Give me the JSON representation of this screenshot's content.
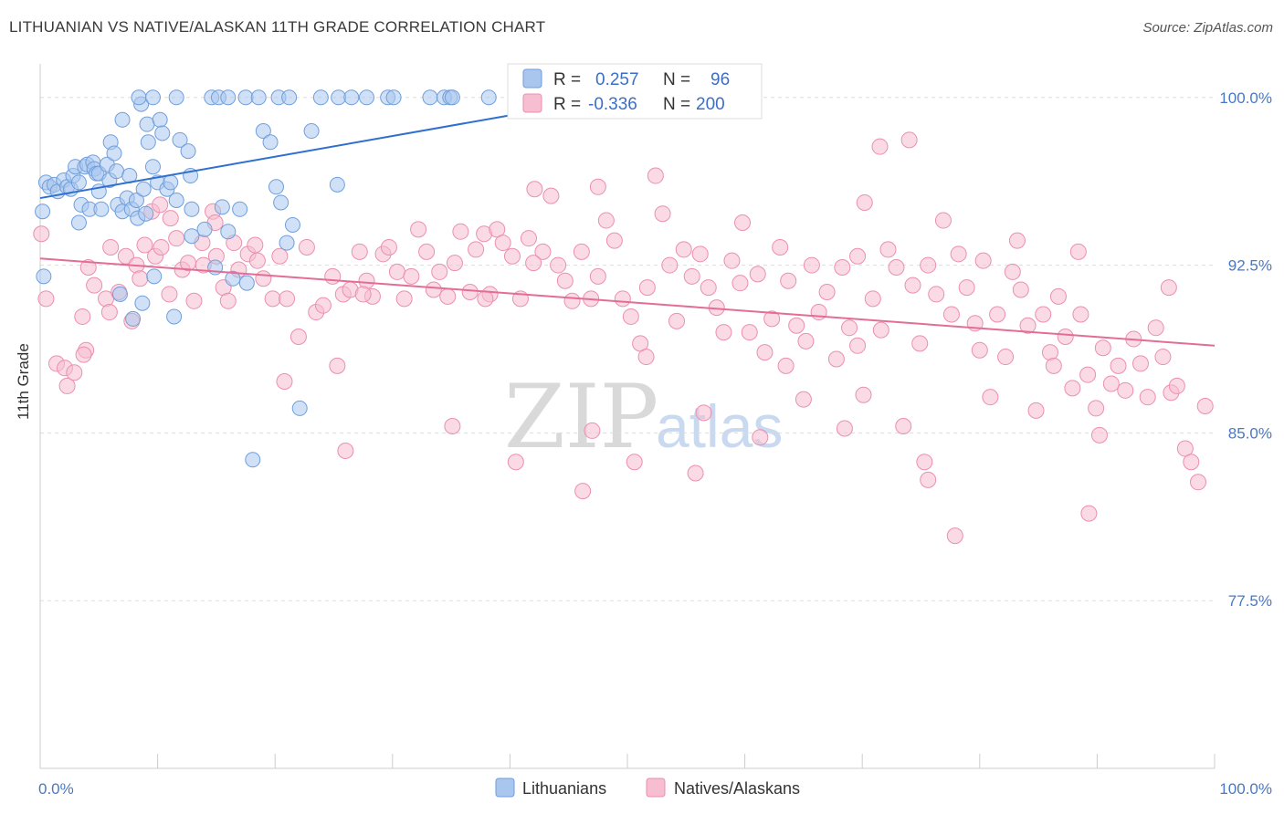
{
  "header": {
    "title": "LITHUANIAN VS NATIVE/ALASKAN 11TH GRADE CORRELATION CHART",
    "source": "Source: ZipAtlas.com"
  },
  "watermark": {
    "zip": "ZIP",
    "atlas": "atlas"
  },
  "colors": {
    "blue": "#6f9fdc",
    "blue_fill": "#a9c6ee",
    "blue_line": "#2f6fce",
    "pink": "#ec8fae",
    "pink_fill": "#f6bed0",
    "pink_line": "#e36d96",
    "tick_text": "#4a78c4",
    "grid": "#dddddd"
  },
  "stats": [
    {
      "r_label": "R =",
      "r_value": "0.257",
      "n_label": "N =",
      "n_value": "96"
    },
    {
      "r_label": "R =",
      "r_value": "-0.336",
      "n_label": "N =",
      "n_value": "200"
    }
  ],
  "chart_data": {
    "type": "scatter",
    "title": "LITHUANIAN VS NATIVE/ALASKAN 11TH GRADE CORRELATION CHART",
    "xlabel": "",
    "ylabel": "11th Grade",
    "xlim": [
      0,
      100
    ],
    "ylim": [
      70.0,
      101.5
    ],
    "x_tick_labels": [
      "0.0%",
      "100.0%"
    ],
    "y_ticks": [
      77.5,
      85.0,
      92.5,
      100.0
    ],
    "y_tick_labels": [
      "77.5%",
      "85.0%",
      "92.5%",
      "100.0%"
    ],
    "grid": true,
    "legend_position": "bottom-center",
    "series": [
      {
        "name": "Lithuanians",
        "color": "#6f9fdc",
        "r": 0.257,
        "n": 96,
        "trend": {
          "x": [
            0,
            40
          ],
          "y": [
            95.5,
            99.2
          ]
        },
        "points": [
          [
            0.2,
            94.9
          ],
          [
            0.3,
            92.0
          ],
          [
            0.5,
            96.2
          ],
          [
            0.8,
            96.0
          ],
          [
            1.2,
            96.1
          ],
          [
            1.5,
            95.8
          ],
          [
            2.0,
            96.3
          ],
          [
            2.3,
            96.0
          ],
          [
            2.6,
            95.9
          ],
          [
            2.8,
            96.5
          ],
          [
            3.0,
            96.9
          ],
          [
            3.3,
            96.2
          ],
          [
            3.5,
            95.2
          ],
          [
            3.3,
            94.4
          ],
          [
            3.8,
            96.9
          ],
          [
            4.0,
            97.0
          ],
          [
            4.2,
            95.0
          ],
          [
            4.5,
            97.1
          ],
          [
            4.6,
            96.8
          ],
          [
            4.8,
            96.6
          ],
          [
            5.0,
            96.6
          ],
          [
            5.0,
            95.8
          ],
          [
            5.2,
            95.0
          ],
          [
            5.7,
            97.0
          ],
          [
            5.9,
            96.3
          ],
          [
            6.0,
            98.0
          ],
          [
            6.3,
            97.5
          ],
          [
            6.5,
            96.7
          ],
          [
            6.6,
            95.2
          ],
          [
            7.0,
            99.0
          ],
          [
            7.0,
            94.9
          ],
          [
            7.4,
            95.5
          ],
          [
            7.6,
            96.5
          ],
          [
            7.8,
            95.0
          ],
          [
            8.2,
            95.4
          ],
          [
            8.3,
            94.6
          ],
          [
            8.6,
            99.7
          ],
          [
            8.8,
            95.9
          ],
          [
            9.0,
            94.8
          ],
          [
            9.1,
            98.8
          ],
          [
            9.2,
            98.0
          ],
          [
            9.6,
            96.9
          ],
          [
            9.7,
            92.0
          ],
          [
            10.0,
            96.2
          ],
          [
            10.2,
            99.0
          ],
          [
            10.4,
            98.4
          ],
          [
            10.8,
            95.9
          ],
          [
            11.1,
            96.2
          ],
          [
            11.6,
            95.4
          ],
          [
            11.9,
            98.1
          ],
          [
            12.6,
            97.6
          ],
          [
            12.8,
            96.5
          ],
          [
            12.9,
            95.0
          ],
          [
            12.9,
            93.8
          ],
          [
            14.0,
            94.1
          ],
          [
            14.9,
            92.4
          ],
          [
            15.5,
            95.1
          ],
          [
            16.0,
            94.0
          ],
          [
            16.4,
            91.9
          ],
          [
            17.0,
            95.0
          ],
          [
            17.6,
            91.7
          ],
          [
            18.1,
            83.8
          ],
          [
            19.0,
            98.5
          ],
          [
            19.6,
            98.0
          ],
          [
            20.1,
            96.0
          ],
          [
            20.5,
            95.3
          ],
          [
            21.0,
            93.5
          ],
          [
            21.5,
            94.3
          ],
          [
            22.1,
            86.1
          ],
          [
            23.1,
            98.5
          ],
          [
            25.3,
            96.1
          ],
          [
            6.8,
            91.2
          ],
          [
            7.9,
            90.1
          ],
          [
            8.7,
            90.8
          ],
          [
            11.4,
            90.2
          ],
          [
            8.4,
            100.0
          ],
          [
            9.6,
            100.0
          ],
          [
            11.6,
            100.0
          ],
          [
            14.6,
            100.0
          ],
          [
            15.2,
            100.0
          ],
          [
            16.0,
            100.0
          ],
          [
            17.5,
            100.0
          ],
          [
            18.6,
            100.0
          ],
          [
            20.3,
            100.0
          ],
          [
            21.2,
            100.0
          ],
          [
            23.9,
            100.0
          ],
          [
            25.4,
            100.0
          ],
          [
            26.5,
            100.0
          ],
          [
            27.8,
            100.0
          ],
          [
            29.6,
            100.0
          ],
          [
            30.1,
            100.0
          ],
          [
            33.2,
            100.0
          ],
          [
            34.4,
            100.0
          ],
          [
            34.9,
            100.0
          ],
          [
            35.1,
            100.0
          ],
          [
            38.2,
            100.0
          ]
        ]
      },
      {
        "name": "Natives/Alaskans",
        "color": "#ec8fae",
        "r": -0.336,
        "n": 200,
        "trend": {
          "x": [
            0,
            100
          ],
          "y": [
            92.8,
            88.9
          ]
        },
        "points": [
          [
            0.1,
            93.9
          ],
          [
            0.5,
            91.0
          ],
          [
            1.4,
            88.1
          ],
          [
            2.1,
            87.9
          ],
          [
            2.3,
            87.1
          ],
          [
            2.9,
            87.7
          ],
          [
            3.6,
            90.2
          ],
          [
            3.9,
            88.7
          ],
          [
            4.1,
            92.4
          ],
          [
            4.6,
            91.6
          ],
          [
            5.6,
            91.0
          ],
          [
            5.9,
            90.4
          ],
          [
            6.0,
            93.3
          ],
          [
            6.7,
            91.3
          ],
          [
            7.3,
            92.9
          ],
          [
            7.8,
            90.0
          ],
          [
            8.2,
            92.5
          ],
          [
            8.5,
            91.9
          ],
          [
            8.9,
            93.4
          ],
          [
            9.5,
            94.9
          ],
          [
            9.8,
            92.9
          ],
          [
            10.2,
            95.2
          ],
          [
            10.3,
            93.3
          ],
          [
            11.0,
            91.2
          ],
          [
            11.1,
            94.6
          ],
          [
            11.6,
            93.7
          ],
          [
            12.1,
            92.3
          ],
          [
            12.6,
            92.6
          ],
          [
            13.1,
            90.9
          ],
          [
            13.8,
            93.5
          ],
          [
            13.9,
            92.5
          ],
          [
            14.7,
            94.9
          ],
          [
            15.0,
            92.9
          ],
          [
            15.6,
            91.5
          ],
          [
            16.0,
            90.9
          ],
          [
            16.5,
            93.5
          ],
          [
            16.9,
            92.3
          ],
          [
            17.7,
            93.0
          ],
          [
            18.5,
            92.7
          ],
          [
            19.0,
            91.9
          ],
          [
            19.8,
            91.0
          ],
          [
            20.4,
            92.9
          ],
          [
            21.0,
            91.0
          ],
          [
            22.0,
            89.3
          ],
          [
            22.7,
            93.3
          ],
          [
            23.5,
            90.4
          ],
          [
            24.1,
            90.7
          ],
          [
            24.9,
            92.0
          ],
          [
            25.8,
            91.2
          ],
          [
            26.4,
            91.4
          ],
          [
            27.2,
            93.1
          ],
          [
            27.8,
            91.8
          ],
          [
            28.3,
            91.1
          ],
          [
            29.2,
            93.0
          ],
          [
            29.7,
            93.3
          ],
          [
            30.4,
            92.2
          ],
          [
            31.0,
            91.0
          ],
          [
            31.6,
            92.0
          ],
          [
            32.2,
            94.1
          ],
          [
            32.9,
            93.1
          ],
          [
            33.5,
            91.4
          ],
          [
            34.0,
            92.2
          ],
          [
            34.7,
            91.1
          ],
          [
            35.3,
            92.6
          ],
          [
            35.8,
            94.0
          ],
          [
            36.6,
            91.3
          ],
          [
            37.1,
            93.2
          ],
          [
            37.8,
            93.9
          ],
          [
            38.3,
            91.2
          ],
          [
            38.9,
            94.1
          ],
          [
            39.4,
            93.5
          ],
          [
            40.2,
            92.9
          ],
          [
            40.9,
            91.0
          ],
          [
            41.6,
            93.7
          ],
          [
            42.1,
            95.9
          ],
          [
            42.8,
            93.1
          ],
          [
            43.5,
            95.6
          ],
          [
            44.1,
            92.5
          ],
          [
            44.7,
            91.8
          ],
          [
            45.3,
            90.9
          ],
          [
            46.1,
            93.1
          ],
          [
            46.9,
            91.0
          ],
          [
            47.5,
            92.0
          ],
          [
            48.2,
            94.5
          ],
          [
            48.9,
            93.6
          ],
          [
            49.6,
            91.0
          ],
          [
            50.3,
            90.2
          ],
          [
            51.1,
            89.0
          ],
          [
            51.7,
            91.5
          ],
          [
            52.4,
            96.5
          ],
          [
            53.0,
            94.8
          ],
          [
            53.6,
            92.5
          ],
          [
            54.2,
            90.0
          ],
          [
            54.8,
            93.2
          ],
          [
            55.5,
            92.0
          ],
          [
            56.2,
            93.0
          ],
          [
            56.9,
            91.5
          ],
          [
            57.6,
            90.6
          ],
          [
            58.2,
            89.5
          ],
          [
            58.9,
            92.7
          ],
          [
            59.6,
            91.7
          ],
          [
            60.4,
            89.5
          ],
          [
            61.1,
            92.1
          ],
          [
            61.7,
            88.6
          ],
          [
            62.3,
            90.1
          ],
          [
            63.0,
            93.3
          ],
          [
            63.7,
            91.8
          ],
          [
            64.4,
            89.8
          ],
          [
            65.0,
            86.5
          ],
          [
            65.7,
            92.5
          ],
          [
            66.3,
            90.4
          ],
          [
            67.0,
            91.3
          ],
          [
            67.8,
            88.3
          ],
          [
            68.3,
            92.4
          ],
          [
            68.9,
            89.7
          ],
          [
            69.6,
            92.9
          ],
          [
            70.1,
            86.7
          ],
          [
            70.9,
            91.0
          ],
          [
            71.6,
            89.6
          ],
          [
            72.2,
            93.2
          ],
          [
            72.9,
            92.4
          ],
          [
            73.5,
            85.3
          ],
          [
            74.3,
            91.6
          ],
          [
            74.9,
            89.0
          ],
          [
            75.6,
            92.5
          ],
          [
            76.3,
            91.2
          ],
          [
            76.9,
            94.5
          ],
          [
            77.6,
            90.3
          ],
          [
            78.2,
            93.0
          ],
          [
            78.9,
            91.5
          ],
          [
            79.6,
            89.9
          ],
          [
            80.3,
            92.7
          ],
          [
            80.9,
            86.6
          ],
          [
            81.5,
            90.3
          ],
          [
            82.2,
            88.4
          ],
          [
            82.8,
            92.2
          ],
          [
            83.5,
            91.4
          ],
          [
            84.1,
            89.8
          ],
          [
            84.8,
            86.0
          ],
          [
            85.4,
            90.3
          ],
          [
            86.0,
            88.6
          ],
          [
            86.7,
            91.1
          ],
          [
            87.3,
            89.3
          ],
          [
            87.9,
            87.0
          ],
          [
            88.6,
            90.3
          ],
          [
            89.2,
            87.6
          ],
          [
            89.9,
            86.1
          ],
          [
            90.5,
            88.8
          ],
          [
            91.2,
            87.2
          ],
          [
            91.8,
            88.0
          ],
          [
            92.4,
            86.9
          ],
          [
            93.1,
            89.2
          ],
          [
            93.7,
            88.1
          ],
          [
            94.3,
            86.6
          ],
          [
            95.0,
            89.7
          ],
          [
            95.6,
            88.4
          ],
          [
            96.3,
            86.8
          ],
          [
            96.8,
            87.1
          ],
          [
            97.5,
            84.3
          ],
          [
            98.0,
            83.7
          ],
          [
            98.6,
            82.8
          ],
          [
            99.2,
            86.2
          ],
          [
            3.7,
            88.5
          ],
          [
            25.3,
            88.0
          ],
          [
            35.1,
            85.3
          ],
          [
            47.0,
            85.1
          ],
          [
            50.6,
            83.7
          ],
          [
            56.5,
            85.9
          ],
          [
            63.5,
            88.0
          ],
          [
            68.5,
            85.2
          ],
          [
            75.6,
            82.9
          ],
          [
            77.9,
            80.4
          ],
          [
            80.0,
            88.7
          ],
          [
            86.3,
            88.0
          ],
          [
            89.3,
            81.4
          ],
          [
            90.2,
            84.9
          ],
          [
            20.8,
            87.3
          ],
          [
            26.0,
            84.2
          ],
          [
            40.5,
            83.7
          ],
          [
            46.2,
            82.4
          ],
          [
            55.8,
            83.2
          ],
          [
            61.3,
            84.8
          ],
          [
            71.5,
            97.8
          ],
          [
            74.0,
            98.1
          ],
          [
            70.2,
            95.3
          ],
          [
            59.8,
            94.4
          ],
          [
            47.5,
            96.0
          ],
          [
            27.5,
            91.2
          ],
          [
            18.3,
            93.4
          ],
          [
            14.9,
            94.4
          ],
          [
            37.9,
            91.0
          ],
          [
            42.0,
            92.6
          ],
          [
            51.6,
            88.4
          ],
          [
            75.3,
            83.7
          ],
          [
            65.2,
            89.1
          ],
          [
            69.6,
            88.9
          ],
          [
            83.2,
            93.6
          ],
          [
            88.4,
            93.1
          ],
          [
            96.1,
            91.5
          ]
        ]
      }
    ]
  },
  "legend": {
    "items": [
      "Lithuanians",
      "Natives/Alaskans"
    ]
  }
}
